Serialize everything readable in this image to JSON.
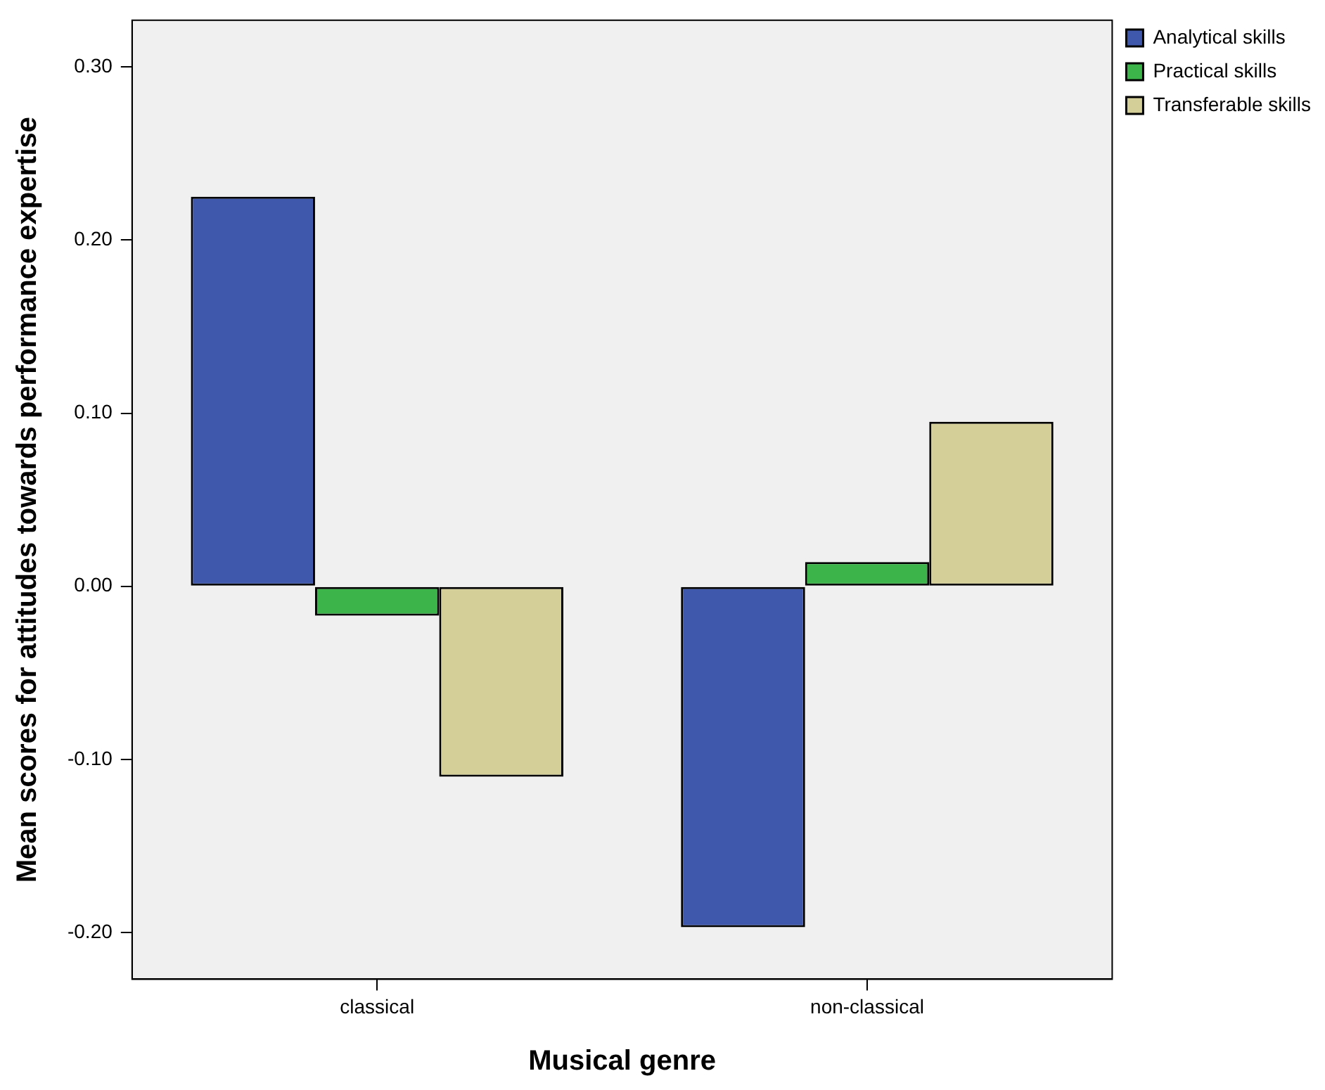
{
  "chart_data": {
    "type": "bar",
    "xlabel": "Musical genre",
    "ylabel": "Mean scores for attitudes towards performance expertise",
    "categories": [
      "classical",
      "non-classical"
    ],
    "series": [
      {
        "name": "Analytical skills",
        "color": "#3f58ab",
        "values": [
          0.225,
          -0.197
        ]
      },
      {
        "name": "Practical skills",
        "color": "#3cb44a",
        "values": [
          -0.017,
          0.014
        ]
      },
      {
        "name": "Transferable skills",
        "color": "#d4cf98",
        "values": [
          -0.11,
          0.095
        ]
      }
    ],
    "ylim": [
      -0.227,
      0.327
    ],
    "yticks": [
      {
        "value": -0.2,
        "label": "-0.20"
      },
      {
        "value": -0.1,
        "label": "-0.10"
      },
      {
        "value": 0,
        "label": "0.00"
      },
      {
        "value": 0.1,
        "label": "0.10"
      },
      {
        "value": 0.2,
        "label": "0.20"
      },
      {
        "value": 0.3,
        "label": "0.30"
      }
    ],
    "grid": false,
    "legend": "top right"
  }
}
